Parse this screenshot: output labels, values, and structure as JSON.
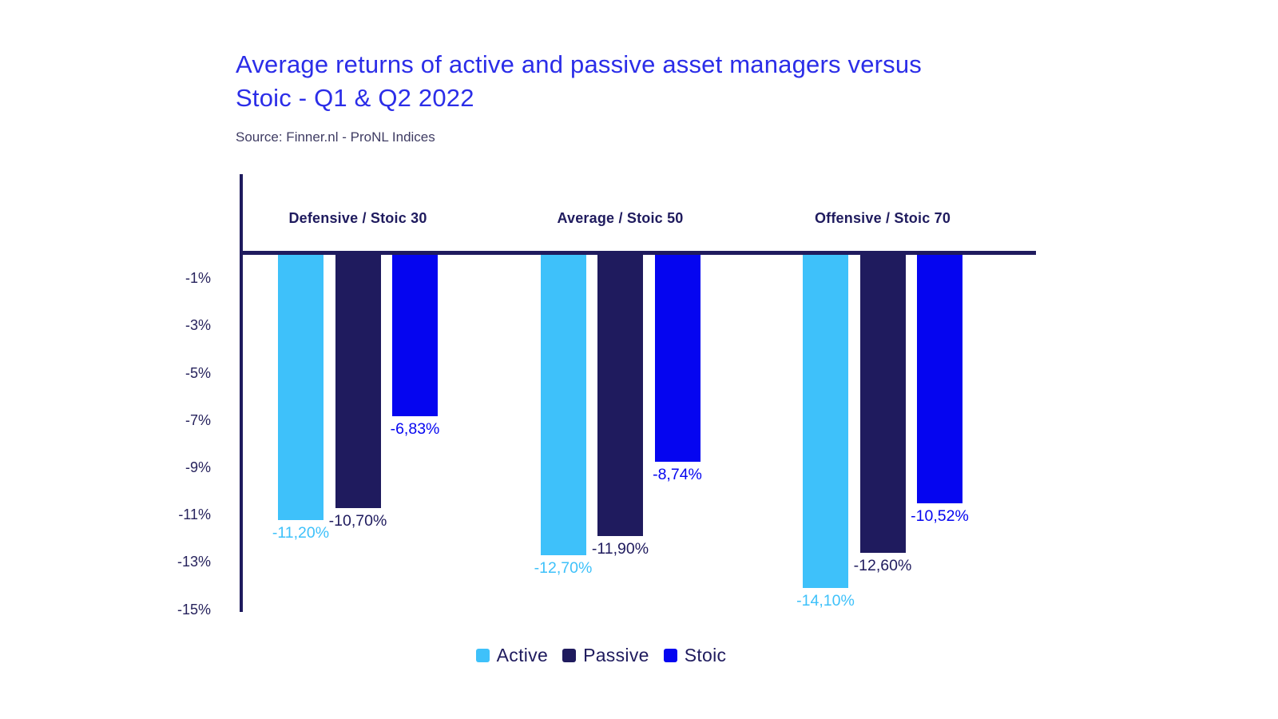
{
  "header": {
    "title_line1": "Average returns of active and passive asset managers versus",
    "title_line2": "Stoic - Q1 & Q2 2022",
    "source": "Source: Finner.nl - ProNL Indices"
  },
  "chart_data": {
    "type": "bar",
    "title": "Average returns of active and passive asset managers versus Stoic - Q1 & Q2 2022",
    "source": "Source: Finner.nl - ProNL Indices",
    "categories": [
      "Defensive / Stoic 30",
      "Average / Stoic 50",
      "Offensive / Stoic 70"
    ],
    "series": [
      {
        "name": "Active",
        "color": "#3ec1fa",
        "values": [
          -11.2,
          -12.7,
          -14.1
        ],
        "labels": [
          "-11,20%",
          "-12,70%",
          "-14,10%"
        ]
      },
      {
        "name": "Passive",
        "color": "#1f1b5e",
        "values": [
          -10.7,
          -11.9,
          -12.6
        ],
        "labels": [
          "-10,70%",
          "-11,90%",
          "-12,60%"
        ]
      },
      {
        "name": "Stoic",
        "color": "#0505f0",
        "values": [
          -6.83,
          -8.74,
          -10.52
        ],
        "labels": [
          "-6,83%",
          "-8,74%",
          "-10,52%"
        ]
      }
    ],
    "y_ticks": [
      "-1%",
      "-3%",
      "-5%",
      "-7%",
      "-9%",
      "-11%",
      "-13%",
      "-15%"
    ],
    "y_tick_values": [
      -1,
      -3,
      -5,
      -7,
      -9,
      -11,
      -13,
      -15
    ],
    "ylim": [
      0,
      -15.1
    ],
    "grid": false,
    "legend_position": "bottom",
    "value_labels_shown": true
  },
  "colors": {
    "title": "#2b2de8",
    "axis": "#1f1b5e",
    "tick_text": "#26225c",
    "category_text": "#1f1b5e",
    "source_text": "#3f3c63",
    "background": "#ffffff"
  }
}
